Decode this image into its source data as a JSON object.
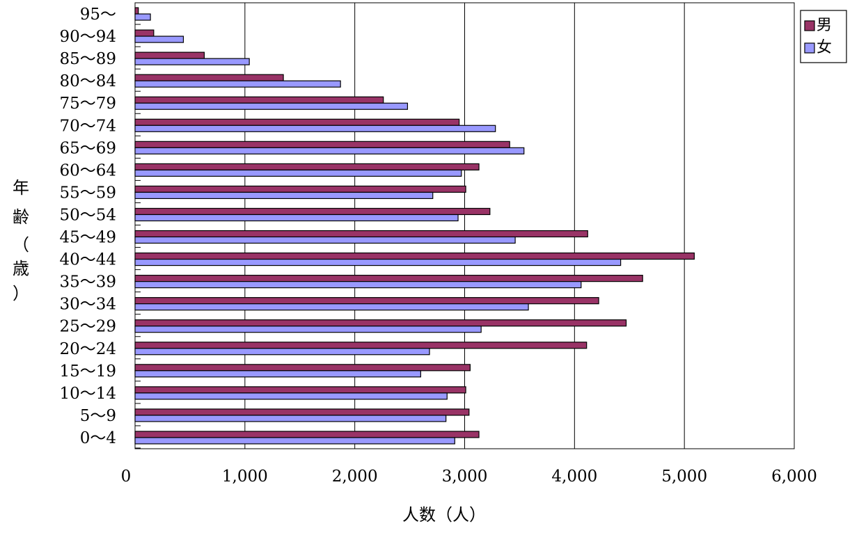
{
  "chart_data": {
    "type": "bar",
    "orientation": "horizontal",
    "categories": [
      "0～4",
      "5～9",
      "10～14",
      "15～19",
      "20～24",
      "25～29",
      "30～34",
      "35～39",
      "40～44",
      "45～49",
      "50～54",
      "55～59",
      "60～64",
      "65～69",
      "70～74",
      "75～79",
      "80～84",
      "85～89",
      "90～94",
      "95～"
    ],
    "series": [
      {
        "name": "男",
        "color": "#993366",
        "values": [
          3130,
          3040,
          3010,
          3050,
          4110,
          4470,
          4220,
          4620,
          5090,
          4120,
          3230,
          3010,
          3130,
          3410,
          2950,
          2260,
          1350,
          630,
          170,
          30
        ]
      },
      {
        "name": "女",
        "color": "#9999ff",
        "values": [
          2910,
          2830,
          2840,
          2600,
          2680,
          3150,
          3580,
          4060,
          4420,
          3460,
          2940,
          2710,
          2970,
          3540,
          3280,
          2480,
          1870,
          1040,
          440,
          140
        ]
      }
    ],
    "xlim": [
      0,
      6000
    ],
    "x_ticks": [
      "0",
      "1,000",
      "2,000",
      "3,000",
      "4,000",
      "5,000",
      "6,000"
    ],
    "xlabel": "人数（人）",
    "ylabel": "年齢（歳）",
    "legend_position": "top-right",
    "grid": "vertical"
  }
}
